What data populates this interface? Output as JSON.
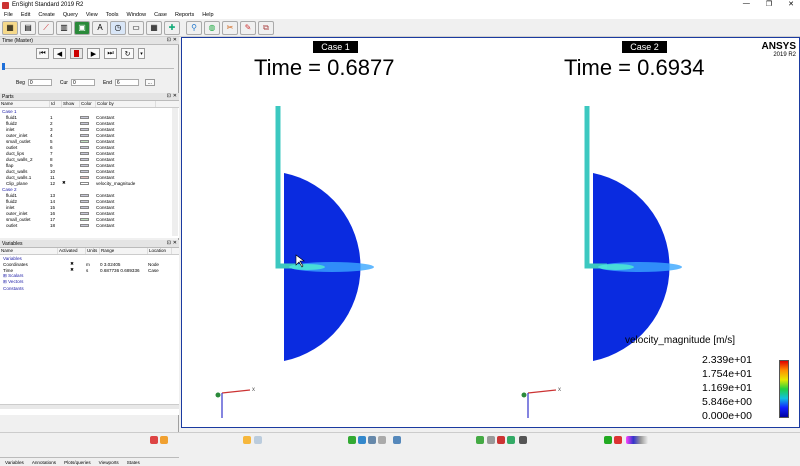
{
  "window": {
    "title": "EnSight Standard 2019 R2",
    "controls": [
      "—",
      "❐",
      "✕"
    ]
  },
  "menu": [
    "File",
    "Edit",
    "Create",
    "Query",
    "View",
    "Tools",
    "Window",
    "Case",
    "Reports",
    "Help"
  ],
  "time_panel": {
    "title": "Time (Master)",
    "beg_label": "Beg",
    "beg_value": "0",
    "cur_label": "Cur",
    "cur_value": "0",
    "end_label": "End",
    "end_value": "6",
    "more_label": "..."
  },
  "parts_panel": {
    "title": "Parts",
    "columns": [
      "Name",
      "Id",
      "Show",
      "Color",
      "Color by"
    ],
    "rows": [
      {
        "name": "Case 1",
        "id": "",
        "show": "",
        "color": "",
        "color_by": "",
        "case": true
      },
      {
        "name": "fluid1",
        "id": "1",
        "show": "",
        "color": "#c8c8d8",
        "color_by": "Constant"
      },
      {
        "name": "fluid2",
        "id": "2",
        "show": "",
        "color": "#c8c8d8",
        "color_by": "Constant"
      },
      {
        "name": "inlet",
        "id": "3",
        "show": "",
        "color": "#c8c8d8",
        "color_by": "Constant"
      },
      {
        "name": "outer_inlet",
        "id": "4",
        "show": "",
        "color": "#c8c8d8",
        "color_by": "Constant"
      },
      {
        "name": "small_outlet",
        "id": "5",
        "show": "",
        "color": "#c0e0c0",
        "color_by": "Constant"
      },
      {
        "name": "outlet",
        "id": "6",
        "show": "",
        "color": "#c8c8d8",
        "color_by": "Constant"
      },
      {
        "name": "duct_lips",
        "id": "7",
        "show": "",
        "color": "#c8c8d8",
        "color_by": "Constant"
      },
      {
        "name": "duct_walls_2",
        "id": "8",
        "show": "",
        "color": "#c8c8d8",
        "color_by": "Constant"
      },
      {
        "name": "flap",
        "id": "9",
        "show": "",
        "color": "#c8c8d8",
        "color_by": "Constant"
      },
      {
        "name": "duct_walls",
        "id": "10",
        "show": "",
        "color": "#c8c8d8",
        "color_by": "Constant"
      },
      {
        "name": "duct_walls.1",
        "id": "11",
        "show": "",
        "color": "#e0c0c0",
        "color_by": "Constant"
      },
      {
        "name": "Clip_plane",
        "id": "12",
        "show": "✖",
        "color": "#ffffff",
        "color_by": "velocity_magnitude"
      },
      {
        "name": "Case 2",
        "id": "",
        "show": "",
        "color": "",
        "color_by": "",
        "case": true
      },
      {
        "name": "fluid1",
        "id": "13",
        "show": "",
        "color": "#c8c8d8",
        "color_by": "Constant"
      },
      {
        "name": "fluid2",
        "id": "14",
        "show": "",
        "color": "#c8c8d8",
        "color_by": "Constant"
      },
      {
        "name": "inlet",
        "id": "15",
        "show": "",
        "color": "#c8c8d8",
        "color_by": "Constant"
      },
      {
        "name": "outer_inlet",
        "id": "16",
        "show": "",
        "color": "#c8c8d8",
        "color_by": "Constant"
      },
      {
        "name": "small_outlet",
        "id": "17",
        "show": "",
        "color": "#c0e0c0",
        "color_by": "Constant"
      },
      {
        "name": "outlet",
        "id": "18",
        "show": "",
        "color": "#c8c8d8",
        "color_by": "Constant"
      }
    ]
  },
  "vars_panel": {
    "title": "Variables",
    "columns": [
      "Name",
      "Activated",
      "Units",
      "Range",
      "Location"
    ],
    "rows": [
      {
        "name": "Variables",
        "act": "",
        "units": "",
        "range": "",
        "loc": "",
        "group": true
      },
      {
        "name": "Coordinates",
        "act": "✖",
        "units": "m",
        "range": "0   3.02405",
        "loc": "Node"
      },
      {
        "name": "Time",
        "act": "✖",
        "units": "s",
        "range": "0.687736   0.689336",
        "loc": "Case"
      },
      {
        "name": "⊞  Scalars",
        "act": "",
        "units": "",
        "range": "",
        "loc": "",
        "group": true
      },
      {
        "name": "⊞  Vectors",
        "act": "",
        "units": "",
        "range": "",
        "loc": "",
        "group": true
      },
      {
        "name": "   Constants",
        "act": "",
        "units": "",
        "range": "",
        "loc": "",
        "group": true
      }
    ]
  },
  "bottom_tabs": [
    "Variables",
    "Annotations",
    "Plots/queries",
    "Viewports",
    "States"
  ],
  "viewport": {
    "case1_label": "Case 1",
    "case2_label": "Case 2",
    "time1": "Time = 0.6877",
    "time2": "Time = 0.6934",
    "brand": "ANSYS",
    "version": "2019 R2"
  },
  "legend": {
    "title": "velocity_magnitude [m/s]",
    "labels": [
      "2.339e+01",
      "1.754e+01",
      "1.169e+01",
      "5.846e+00",
      "0.000e+00"
    ]
  },
  "colors": {
    "domain_blue": "#0a2be0",
    "pipe": "#3cc8c0",
    "frame": "#1b3ba0"
  }
}
